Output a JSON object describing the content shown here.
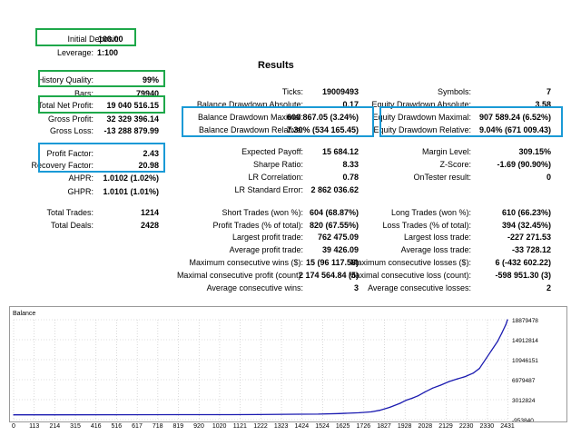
{
  "colors": {
    "green_box": "#1ea84a",
    "blue_box": "#1a9ad6",
    "balance_line": "#1a1ab0",
    "grid": "#c0c0c0"
  },
  "results_title": "Results",
  "left": [
    {
      "label": "Initial Deposit:",
      "value": "100.00"
    },
    {
      "label": "Leverage:",
      "value": "1:100"
    },
    {
      "label": "History Quality:",
      "value": "99%"
    },
    {
      "label": "Bars:",
      "value": "79940"
    },
    {
      "label": "Total Net Profit:",
      "value": "19 040 516.15"
    },
    {
      "label": "Gross Profit:",
      "value": "32 329 396.14"
    },
    {
      "label": "Gross Loss:",
      "value": "-13 288 879.99"
    },
    {
      "label": "Profit Factor:",
      "value": "2.43"
    },
    {
      "label": "Recovery Factor:",
      "value": "20.98"
    },
    {
      "label": "AHPR:",
      "value": "1.0102 (1.02%)"
    },
    {
      "label": "GHPR:",
      "value": "1.0101 (1.01%)"
    },
    {
      "label": "Total Trades:",
      "value": "1214"
    },
    {
      "label": "Total Deals:",
      "value": "2428"
    }
  ],
  "mid": [
    {
      "label": "Ticks:",
      "value": "19009493"
    },
    {
      "label": "Balance Drawdown Absolute:",
      "value": "0.17"
    },
    {
      "label": "Balance Drawdown Maximal:",
      "value": "600 867.05 (3.24%)"
    },
    {
      "label": "Balance Drawdown Relative:",
      "value": "7.30% (534 165.45)"
    },
    {
      "label": "Expected Payoff:",
      "value": "15 684.12"
    },
    {
      "label": "Sharpe Ratio:",
      "value": "8.33"
    },
    {
      "label": "LR Correlation:",
      "value": "0.78"
    },
    {
      "label": "LR Standard Error:",
      "value": "2 862 036.62"
    },
    {
      "label": "Short Trades (won %):",
      "value": "604 (68.87%)"
    },
    {
      "label": "Profit Trades (% of total):",
      "value": "820 (67.55%)"
    },
    {
      "label": "Largest profit trade:",
      "value": "762 475.09"
    },
    {
      "label": "Average profit trade:",
      "value": "39 426.09"
    },
    {
      "label": "Maximum consecutive wins ($):",
      "value": "15 (96 117.58)"
    },
    {
      "label": "Maximal consecutive profit (count):",
      "value": "2 174 564.84 (5)"
    },
    {
      "label": "Average consecutive wins:",
      "value": "3"
    }
  ],
  "right": [
    {
      "label": "Symbols:",
      "value": "7"
    },
    {
      "label": "Equity Drawdown Absolute:",
      "value": "3.58"
    },
    {
      "label": "Equity Drawdown Maximal:",
      "value": "907 589.24 (6.52%)"
    },
    {
      "label": "Equity Drawdown Relative:",
      "value": "9.04% (671 009.43)"
    },
    {
      "label": "Margin Level:",
      "value": "309.15%"
    },
    {
      "label": "Z-Score:",
      "value": "-1.69 (90.90%)"
    },
    {
      "label": "OnTester result:",
      "value": "0"
    },
    {
      "label": "Long Trades (won %):",
      "value": "610 (66.23%)"
    },
    {
      "label": "Loss Trades (% of total):",
      "value": "394 (32.45%)"
    },
    {
      "label": "Largest loss trade:",
      "value": "-227 271.53"
    },
    {
      "label": "Average loss trade:",
      "value": "-33 728.12"
    },
    {
      "label": "Maximum consecutive losses ($):",
      "value": "6 (-432 602.22)"
    },
    {
      "label": "Maximal consecutive loss (count):",
      "value": "-598 951.30 (3)"
    },
    {
      "label": "Average consecutive losses:",
      "value": "2"
    }
  ],
  "chart_data": {
    "type": "line",
    "title": "Balance",
    "xlabel": "",
    "ylabel": "",
    "x_ticks": [
      "0",
      "113",
      "214",
      "315",
      "416",
      "516",
      "617",
      "718",
      "819",
      "920",
      "1020",
      "1121",
      "1222",
      "1323",
      "1424",
      "1524",
      "1625",
      "1726",
      "1827",
      "1928",
      "2028",
      "2129",
      "2230",
      "2330",
      "2431"
    ],
    "y_ticks": [
      "18879478",
      "14912814",
      "10946151",
      "6979487",
      "3012824",
      "-953840"
    ],
    "xlim": [
      0,
      2428
    ],
    "ylim": [
      -953840,
      18879478
    ],
    "grid": true,
    "series": [
      {
        "x": [
          0,
          200,
          500,
          800,
          1000,
          1200,
          1400,
          1500,
          1600,
          1700,
          1760,
          1800,
          1850,
          1900,
          1930,
          1960,
          1990,
          2020,
          2060,
          2100,
          2140,
          2180,
          2220,
          2260,
          2290,
          2320,
          2350,
          2380,
          2400,
          2420,
          2428
        ],
        "y": [
          100,
          5000,
          15000,
          30000,
          45000,
          60000,
          120000,
          150000,
          250000,
          420000,
          600000,
          900000,
          1500000,
          2300000,
          2900000,
          3300000,
          3800000,
          4500000,
          5300000,
          5900000,
          6600000,
          7100000,
          7600000,
          8300000,
          9200000,
          11000000,
          12800000,
          14600000,
          16200000,
          17900000,
          18879478
        ]
      }
    ]
  }
}
